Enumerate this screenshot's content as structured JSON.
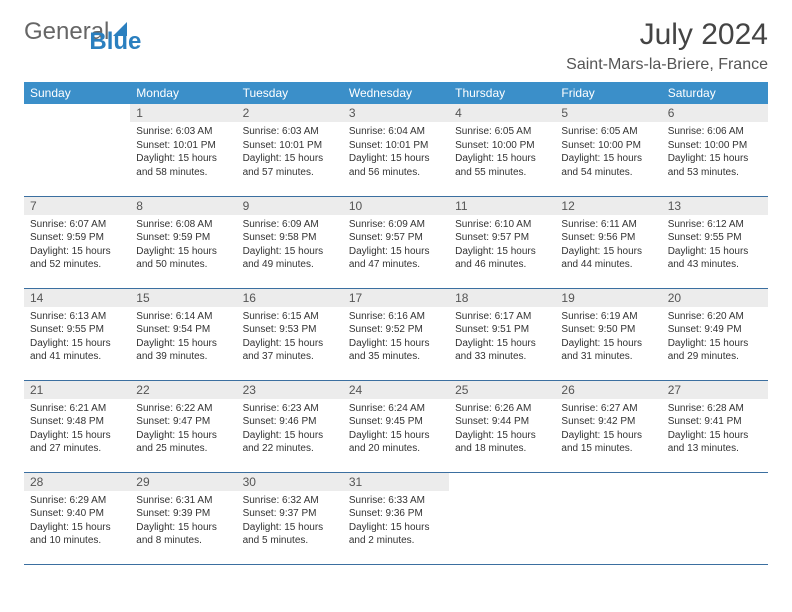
{
  "logo": {
    "text1": "General",
    "text2": "Blue"
  },
  "title": "July 2024",
  "location": "Saint-Mars-la-Briere, France",
  "colors": {
    "header_bg": "#3b8fc9",
    "header_fg": "#ffffff",
    "daynum_bg": "#ececec",
    "row_border": "#3b6fa0",
    "logo_blue": "#2a7fbf"
  },
  "weekdays": [
    "Sunday",
    "Monday",
    "Tuesday",
    "Wednesday",
    "Thursday",
    "Friday",
    "Saturday"
  ],
  "start_offset": 1,
  "days": [
    {
      "n": 1,
      "sunrise": "6:03 AM",
      "sunset": "10:01 PM",
      "daylight": "15 hours and 58 minutes."
    },
    {
      "n": 2,
      "sunrise": "6:03 AM",
      "sunset": "10:01 PM",
      "daylight": "15 hours and 57 minutes."
    },
    {
      "n": 3,
      "sunrise": "6:04 AM",
      "sunset": "10:01 PM",
      "daylight": "15 hours and 56 minutes."
    },
    {
      "n": 4,
      "sunrise": "6:05 AM",
      "sunset": "10:00 PM",
      "daylight": "15 hours and 55 minutes."
    },
    {
      "n": 5,
      "sunrise": "6:05 AM",
      "sunset": "10:00 PM",
      "daylight": "15 hours and 54 minutes."
    },
    {
      "n": 6,
      "sunrise": "6:06 AM",
      "sunset": "10:00 PM",
      "daylight": "15 hours and 53 minutes."
    },
    {
      "n": 7,
      "sunrise": "6:07 AM",
      "sunset": "9:59 PM",
      "daylight": "15 hours and 52 minutes."
    },
    {
      "n": 8,
      "sunrise": "6:08 AM",
      "sunset": "9:59 PM",
      "daylight": "15 hours and 50 minutes."
    },
    {
      "n": 9,
      "sunrise": "6:09 AM",
      "sunset": "9:58 PM",
      "daylight": "15 hours and 49 minutes."
    },
    {
      "n": 10,
      "sunrise": "6:09 AM",
      "sunset": "9:57 PM",
      "daylight": "15 hours and 47 minutes."
    },
    {
      "n": 11,
      "sunrise": "6:10 AM",
      "sunset": "9:57 PM",
      "daylight": "15 hours and 46 minutes."
    },
    {
      "n": 12,
      "sunrise": "6:11 AM",
      "sunset": "9:56 PM",
      "daylight": "15 hours and 44 minutes."
    },
    {
      "n": 13,
      "sunrise": "6:12 AM",
      "sunset": "9:55 PM",
      "daylight": "15 hours and 43 minutes."
    },
    {
      "n": 14,
      "sunrise": "6:13 AM",
      "sunset": "9:55 PM",
      "daylight": "15 hours and 41 minutes."
    },
    {
      "n": 15,
      "sunrise": "6:14 AM",
      "sunset": "9:54 PM",
      "daylight": "15 hours and 39 minutes."
    },
    {
      "n": 16,
      "sunrise": "6:15 AM",
      "sunset": "9:53 PM",
      "daylight": "15 hours and 37 minutes."
    },
    {
      "n": 17,
      "sunrise": "6:16 AM",
      "sunset": "9:52 PM",
      "daylight": "15 hours and 35 minutes."
    },
    {
      "n": 18,
      "sunrise": "6:17 AM",
      "sunset": "9:51 PM",
      "daylight": "15 hours and 33 minutes."
    },
    {
      "n": 19,
      "sunrise": "6:19 AM",
      "sunset": "9:50 PM",
      "daylight": "15 hours and 31 minutes."
    },
    {
      "n": 20,
      "sunrise": "6:20 AM",
      "sunset": "9:49 PM",
      "daylight": "15 hours and 29 minutes."
    },
    {
      "n": 21,
      "sunrise": "6:21 AM",
      "sunset": "9:48 PM",
      "daylight": "15 hours and 27 minutes."
    },
    {
      "n": 22,
      "sunrise": "6:22 AM",
      "sunset": "9:47 PM",
      "daylight": "15 hours and 25 minutes."
    },
    {
      "n": 23,
      "sunrise": "6:23 AM",
      "sunset": "9:46 PM",
      "daylight": "15 hours and 22 minutes."
    },
    {
      "n": 24,
      "sunrise": "6:24 AM",
      "sunset": "9:45 PM",
      "daylight": "15 hours and 20 minutes."
    },
    {
      "n": 25,
      "sunrise": "6:26 AM",
      "sunset": "9:44 PM",
      "daylight": "15 hours and 18 minutes."
    },
    {
      "n": 26,
      "sunrise": "6:27 AM",
      "sunset": "9:42 PM",
      "daylight": "15 hours and 15 minutes."
    },
    {
      "n": 27,
      "sunrise": "6:28 AM",
      "sunset": "9:41 PM",
      "daylight": "15 hours and 13 minutes."
    },
    {
      "n": 28,
      "sunrise": "6:29 AM",
      "sunset": "9:40 PM",
      "daylight": "15 hours and 10 minutes."
    },
    {
      "n": 29,
      "sunrise": "6:31 AM",
      "sunset": "9:39 PM",
      "daylight": "15 hours and 8 minutes."
    },
    {
      "n": 30,
      "sunrise": "6:32 AM",
      "sunset": "9:37 PM",
      "daylight": "15 hours and 5 minutes."
    },
    {
      "n": 31,
      "sunrise": "6:33 AM",
      "sunset": "9:36 PM",
      "daylight": "15 hours and 2 minutes."
    }
  ],
  "labels": {
    "sunrise": "Sunrise:",
    "sunset": "Sunset:",
    "daylight": "Daylight:"
  }
}
